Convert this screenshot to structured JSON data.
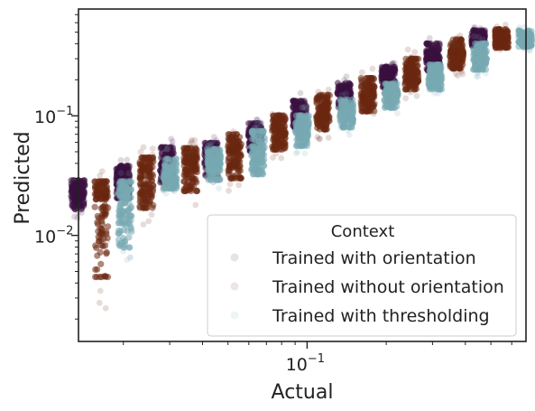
{
  "chart_data": {
    "type": "scatter",
    "xlabel": "Actual",
    "ylabel": "Predicted",
    "xscale": "log",
    "yscale": "log",
    "xlim": [
      0.0135,
      0.68
    ],
    "ylim": [
      0.0013,
      0.78
    ],
    "x_major_ticks": [
      {
        "value": 0.1,
        "base": "10",
        "exp": "−1"
      }
    ],
    "y_major_ticks": [
      {
        "value": 0.01,
        "base": "10",
        "exp": "−2"
      },
      {
        "value": 0.1,
        "base": "10",
        "exp": "−1"
      }
    ],
    "grid": false,
    "legend": {
      "title": "Context",
      "placement": "lower-right",
      "entries": [
        "Trained with orientation",
        "Trained without orientation",
        "Trained with thresholding"
      ]
    },
    "series_colors": [
      "#3b1140",
      "#6b2810",
      "#79aab3"
    ],
    "categories_actual": [
      0.0165,
      0.0245,
      0.036,
      0.053,
      0.078,
      0.115,
      0.17,
      0.25,
      0.37,
      0.55
    ],
    "series": [
      {
        "legend_index": 0,
        "color": "#3b1140",
        "points": [
          {
            "x": 0.0165,
            "median": 0.022,
            "low": 0.014,
            "high": 0.034
          },
          {
            "x": 0.0245,
            "median": 0.031,
            "low": 0.016,
            "high": 0.043
          },
          {
            "x": 0.036,
            "median": 0.038,
            "low": 0.022,
            "high": 0.068
          },
          {
            "x": 0.053,
            "median": 0.045,
            "low": 0.025,
            "high": 0.07
          },
          {
            "x": 0.078,
            "median": 0.07,
            "low": 0.042,
            "high": 0.098
          },
          {
            "x": 0.115,
            "median": 0.098,
            "low": 0.07,
            "high": 0.16
          },
          {
            "x": 0.17,
            "median": 0.15,
            "low": 0.1,
            "high": 0.215
          },
          {
            "x": 0.25,
            "median": 0.22,
            "low": 0.15,
            "high": 0.28
          },
          {
            "x": 0.37,
            "median": 0.3,
            "low": 0.21,
            "high": 0.48
          },
          {
            "x": 0.55,
            "median": 0.45,
            "low": 0.35,
            "high": 0.56
          }
        ]
      },
      {
        "legend_index": 1,
        "color": "#6b2810",
        "points": [
          {
            "x": 0.0165,
            "median": 0.02,
            "low": 0.0018,
            "high": 0.035
          },
          {
            "x": 0.0245,
            "median": 0.03,
            "low": 0.012,
            "high": 0.057
          },
          {
            "x": 0.036,
            "median": 0.04,
            "low": 0.017,
            "high": 0.064
          },
          {
            "x": 0.053,
            "median": 0.05,
            "low": 0.022,
            "high": 0.086
          },
          {
            "x": 0.078,
            "median": 0.075,
            "low": 0.042,
            "high": 0.12
          },
          {
            "x": 0.115,
            "median": 0.11,
            "low": 0.062,
            "high": 0.18
          },
          {
            "x": 0.17,
            "median": 0.15,
            "low": 0.09,
            "high": 0.25
          },
          {
            "x": 0.25,
            "median": 0.22,
            "low": 0.14,
            "high": 0.36
          },
          {
            "x": 0.37,
            "median": 0.33,
            "low": 0.21,
            "high": 0.51
          },
          {
            "x": 0.55,
            "median": 0.45,
            "low": 0.33,
            "high": 0.58
          }
        ]
      },
      {
        "legend_index": 2,
        "color": "#79aab3",
        "points": [
          {
            "x": 0.0165,
            "median": 0.02,
            "low": 0.0045,
            "high": 0.035
          },
          {
            "x": 0.0245,
            "median": 0.03,
            "low": 0.022,
            "high": 0.055
          },
          {
            "x": 0.036,
            "median": 0.04,
            "low": 0.024,
            "high": 0.062
          },
          {
            "x": 0.053,
            "median": 0.05,
            "low": 0.025,
            "high": 0.095
          },
          {
            "x": 0.078,
            "median": 0.075,
            "low": 0.047,
            "high": 0.12
          },
          {
            "x": 0.115,
            "median": 0.105,
            "low": 0.068,
            "high": 0.16
          },
          {
            "x": 0.17,
            "median": 0.15,
            "low": 0.1,
            "high": 0.21
          },
          {
            "x": 0.25,
            "median": 0.22,
            "low": 0.14,
            "high": 0.3
          },
          {
            "x": 0.37,
            "median": 0.31,
            "low": 0.21,
            "high": 0.47
          },
          {
            "x": 0.55,
            "median": 0.45,
            "low": 0.34,
            "high": 0.56
          }
        ]
      }
    ]
  }
}
